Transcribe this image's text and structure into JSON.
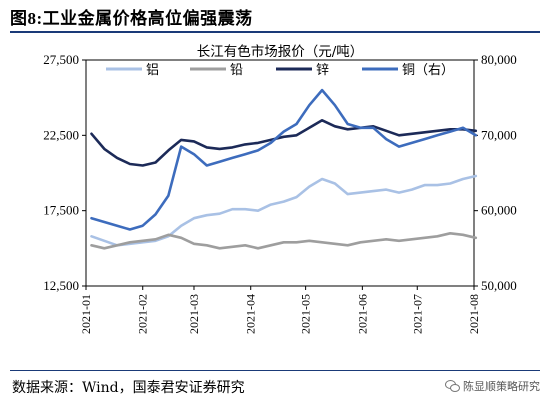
{
  "figure": {
    "label": "图8:",
    "title": "工业金属价格高位偏强震荡"
  },
  "source_text": "数据来源：Wind，国泰君安证券研究",
  "watermark": "陈显顺策略研究",
  "chart_data": {
    "type": "line",
    "title": "长江有色市场报价（元/吨）",
    "x": [
      "2021-01-04",
      "2021-01-11",
      "2021-01-18",
      "2021-01-25",
      "2021-02-01",
      "2021-02-08",
      "2021-02-15",
      "2021-02-22",
      "2021-03-01",
      "2021-03-08",
      "2021-03-15",
      "2021-03-22",
      "2021-03-29",
      "2021-04-05",
      "2021-04-12",
      "2021-04-19",
      "2021-04-26",
      "2021-05-03",
      "2021-05-10",
      "2021-05-17",
      "2021-05-24",
      "2021-05-31",
      "2021-06-07",
      "2021-06-14",
      "2021-06-21",
      "2021-06-28",
      "2021-07-05",
      "2021-07-12",
      "2021-07-19",
      "2021-07-26",
      "2021-08-02"
    ],
    "x_ticks": [
      "2021-01",
      "2021-02",
      "2021-03",
      "2021-04",
      "2021-05",
      "2021-06",
      "2021-07",
      "2021-08"
    ],
    "y_left": {
      "ylim": [
        12500,
        27500
      ],
      "ticks": [
        "12,500",
        "17,500",
        "22,500",
        "27,500"
      ]
    },
    "y_right": {
      "ylim": [
        50000,
        80000
      ],
      "ticks": [
        "50,000",
        "60,000",
        "70,000",
        "80,000"
      ]
    },
    "series": [
      {
        "name": "铝",
        "color": "#a9c1e5",
        "axis": "left",
        "values": [
          15800,
          15500,
          15200,
          15300,
          15400,
          15500,
          15800,
          16500,
          17000,
          17200,
          17300,
          17600,
          17600,
          17500,
          17900,
          18100,
          18400,
          19100,
          19600,
          19300,
          18600,
          18700,
          18800,
          18900,
          18700,
          18900,
          19200,
          19200,
          19300,
          19600,
          19800
        ]
      },
      {
        "name": "铅",
        "color": "#9e9e9e",
        "axis": "left",
        "values": [
          15200,
          15000,
          15200,
          15400,
          15500,
          15600,
          15900,
          15700,
          15300,
          15200,
          15000,
          15100,
          15200,
          15000,
          15200,
          15400,
          15400,
          15500,
          15400,
          15300,
          15200,
          15400,
          15500,
          15600,
          15500,
          15600,
          15700,
          15800,
          16000,
          15900,
          15700
        ]
      },
      {
        "name": "锌",
        "color": "#1c2a58",
        "axis": "left",
        "values": [
          22600,
          21600,
          21000,
          20600,
          20500,
          20700,
          21500,
          22200,
          22100,
          21700,
          21600,
          21700,
          21900,
          22000,
          22200,
          22400,
          22500,
          23000,
          23500,
          23100,
          22900,
          23000,
          23100,
          22800,
          22500,
          22600,
          22700,
          22800,
          22900,
          22900,
          22800
        ]
      },
      {
        "name": "铜（右）",
        "color": "#3d6cbd",
        "axis": "right",
        "values": [
          59000,
          58500,
          58000,
          57500,
          58000,
          59500,
          62000,
          68500,
          67500,
          66000,
          66500,
          67000,
          67500,
          68000,
          69000,
          70500,
          71500,
          74000,
          76000,
          74000,
          71500,
          71000,
          71000,
          69500,
          68500,
          69000,
          69500,
          70000,
          70500,
          71000,
          70000
        ]
      }
    ]
  }
}
